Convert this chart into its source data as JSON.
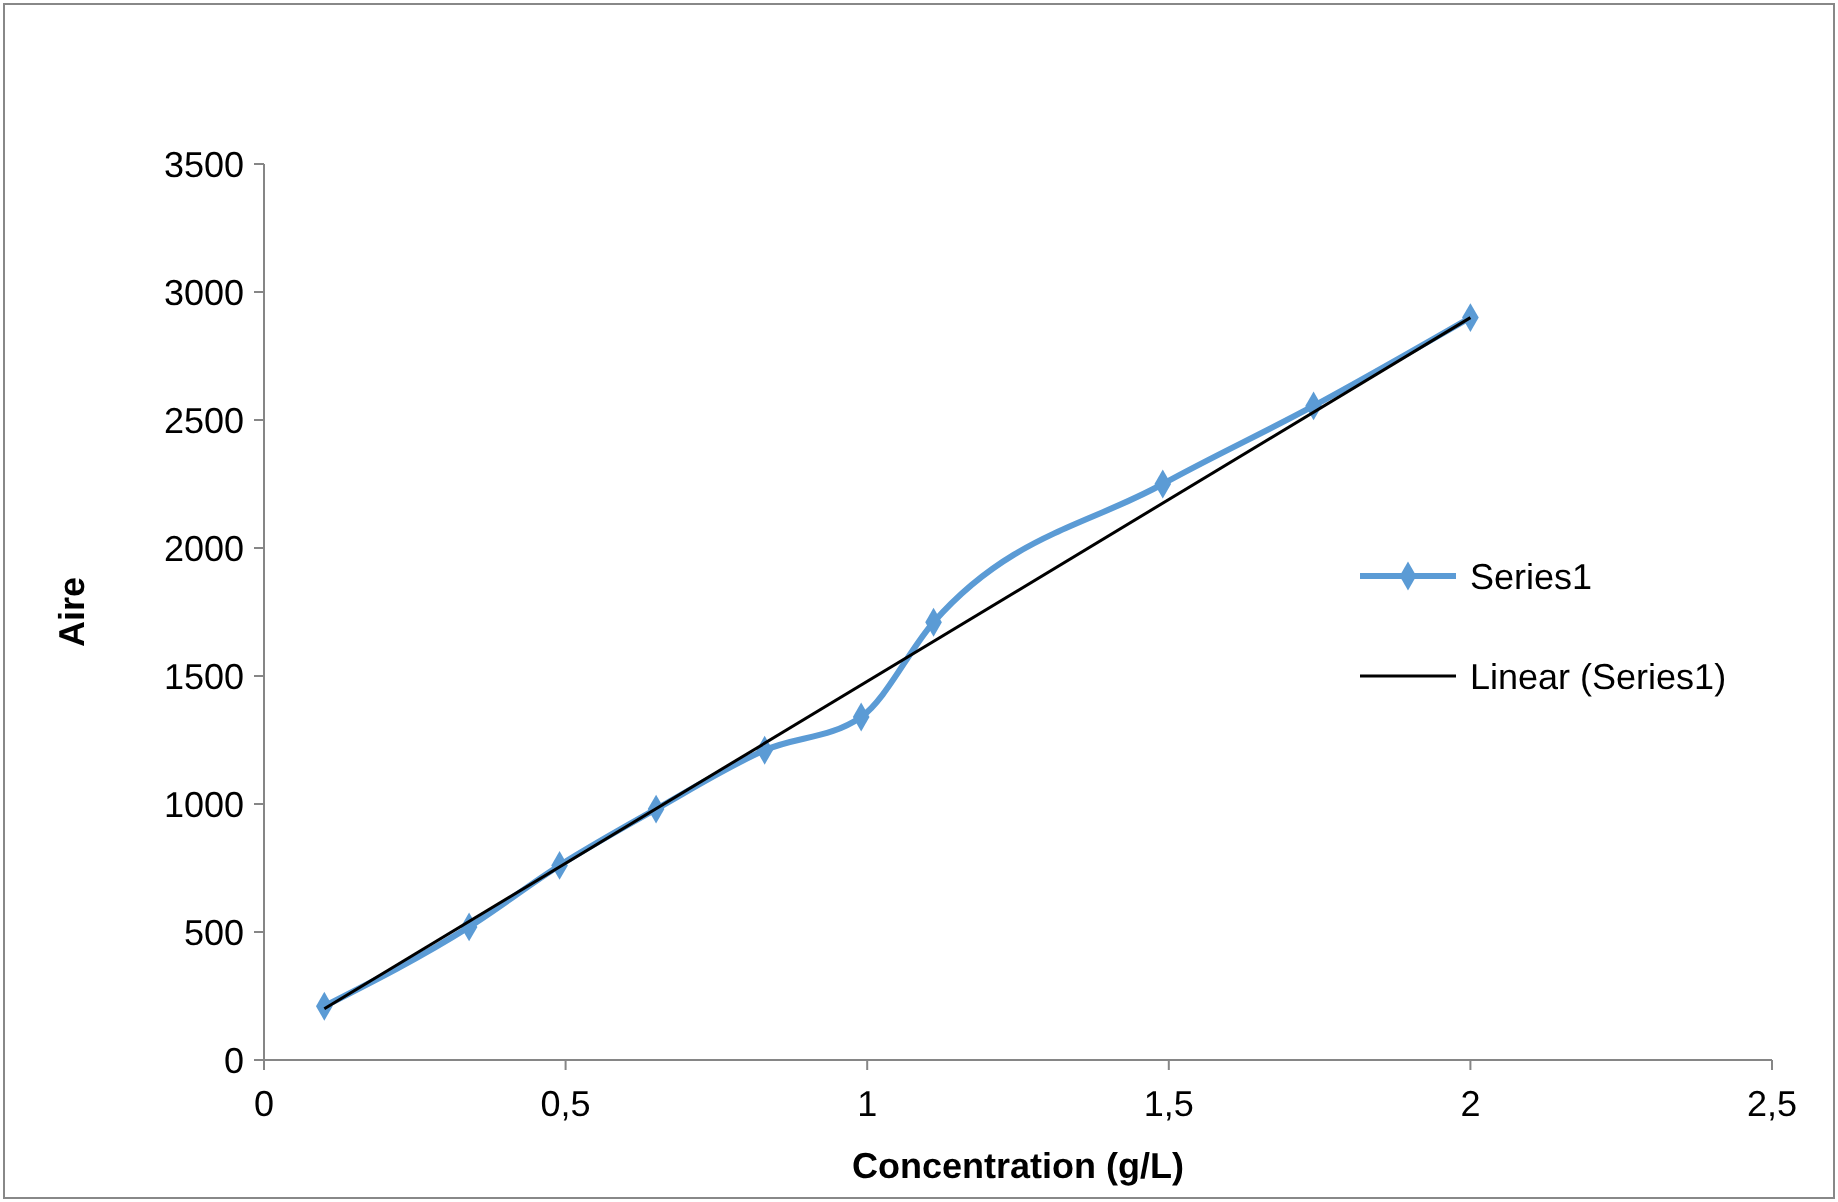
{
  "chart_data": {
    "type": "line",
    "xlabel": "Concentration (g/L)",
    "ylabel": "Aire",
    "xlim": [
      0,
      2.5
    ],
    "xticks": [
      0,
      {
        "value": 0.5,
        "label": "0,5"
      },
      1,
      {
        "value": 1.5,
        "label": "1,5"
      },
      2,
      {
        "value": 2.5,
        "label": "2,5"
      }
    ],
    "ylim": [
      0,
      3500
    ],
    "yticks": [
      0,
      500,
      1000,
      1500,
      2000,
      2500,
      3000,
      3500
    ],
    "grid": false,
    "legend": "right",
    "series": [
      {
        "name": "Series1",
        "color": "#5b9bd5",
        "marker": "diamond",
        "x": [
          0.1,
          0.34,
          0.49,
          0.65,
          0.83,
          0.99,
          1.11,
          1.49,
          1.74,
          2.0
        ],
        "values": [
          210,
          520,
          760,
          980,
          1210,
          1340,
          1710,
          2250,
          2555,
          2900
        ]
      },
      {
        "name": "Linear (Series1)",
        "color": "#000000",
        "marker": "none",
        "x": [
          0.1,
          2.0
        ],
        "values": [
          200,
          2900
        ]
      }
    ]
  }
}
